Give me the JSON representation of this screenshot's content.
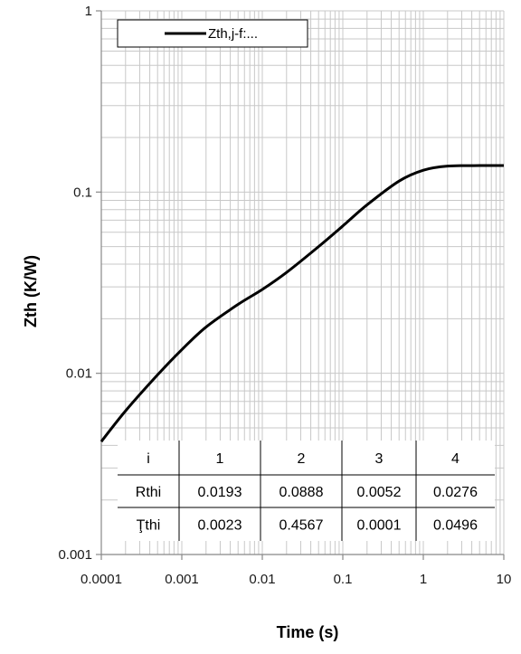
{
  "chart_data": {
    "type": "line",
    "xscale": "log",
    "yscale": "log",
    "xlim": [
      0.0001,
      10
    ],
    "ylim": [
      0.001,
      1
    ],
    "xlabel": "Time (s)",
    "ylabel": "Zth (K/W)",
    "xticks": [
      "0.0001",
      "0.001",
      "0.01",
      "0.1",
      "1",
      "10"
    ],
    "yticks": [
      "0.001",
      "0.01",
      "0.1",
      "1"
    ],
    "grid": true,
    "legend_position": "top-left",
    "series": [
      {
        "name": "Zth,j-f:...",
        "color": "#000000",
        "x": [
          0.0001,
          0.0002,
          0.0005,
          0.001,
          0.002,
          0.005,
          0.01,
          0.02,
          0.05,
          0.1,
          0.2,
          0.5,
          1,
          2,
          5,
          10
        ],
        "y": [
          0.0042,
          0.0062,
          0.0098,
          0.0135,
          0.018,
          0.024,
          0.029,
          0.036,
          0.05,
          0.065,
          0.085,
          0.115,
          0.132,
          0.139,
          0.14,
          0.14
        ]
      }
    ]
  },
  "table": {
    "header": [
      "i",
      "1",
      "2",
      "3",
      "4"
    ],
    "rows": [
      [
        "Rthi",
        "0.0193",
        "0.0888",
        "0.0052",
        "0.0276"
      ],
      [
        "Ţthi",
        "0.0023",
        "0.4567",
        "0.0001",
        "0.0496"
      ]
    ]
  },
  "colors": {
    "curve": "#000000",
    "grid": "#c8c8c8",
    "axis": "#888888"
  }
}
